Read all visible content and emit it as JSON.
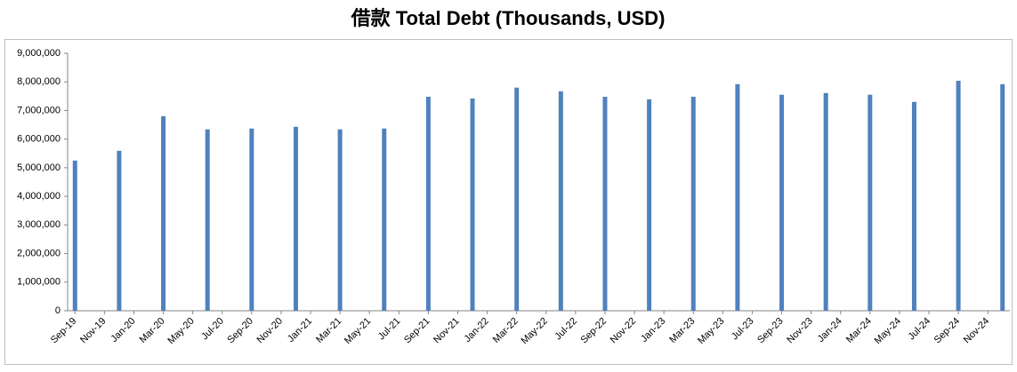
{
  "chart_data": {
    "type": "bar",
    "title": "借款 Total Debt (Thousands, USD)",
    "categories": [
      "Sep-19",
      null,
      "Nov-19",
      null,
      "Jan-20",
      null,
      "Mar-20",
      null,
      "May-20",
      null,
      "Jul-20",
      null,
      "Sep-20",
      null,
      "Nov-20",
      null,
      "Jan-21",
      null,
      "Mar-21",
      null,
      "May-21",
      null,
      "Jul-21",
      null,
      "Sep-21",
      null,
      "Nov-21",
      null,
      "Jan-22",
      null,
      "Mar-22",
      null,
      "May-22",
      null,
      "Jul-22",
      null,
      "Sep-22",
      null,
      "Nov-22",
      null,
      "Jan-23",
      null,
      "Mar-23",
      null,
      "May-23",
      null,
      "Jul-23",
      null,
      "Sep-23",
      null,
      "Nov-23",
      null,
      "Jan-24",
      null,
      "Mar-24",
      null,
      "May-24",
      null,
      "Jul-24",
      null,
      "Sep-24",
      null,
      "Nov-24",
      null
    ],
    "values": [
      5250000,
      null,
      null,
      5590000,
      null,
      null,
      6800000,
      null,
      null,
      6340000,
      null,
      null,
      6370000,
      null,
      null,
      6430000,
      null,
      null,
      6340000,
      null,
      null,
      6370000,
      null,
      null,
      7480000,
      null,
      null,
      7420000,
      null,
      null,
      7800000,
      null,
      null,
      7670000,
      null,
      null,
      7480000,
      null,
      null,
      7390000,
      null,
      null,
      7480000,
      null,
      null,
      7920000,
      null,
      null,
      7550000,
      null,
      null,
      7610000,
      null,
      null,
      7550000,
      null,
      null,
      7300000,
      null,
      null,
      8040000,
      null,
      null,
      7920000
    ],
    "color": "#4f81bd",
    "ylim": [
      0,
      9000000
    ],
    "yticks": [
      0,
      {
        "value": 1000000,
        "label": "1,000,000"
      },
      {
        "value": 2000000,
        "label": "2,000,000"
      },
      {
        "value": 3000000,
        "label": "3,000,000"
      },
      {
        "value": 4000000,
        "label": "4,000,000"
      },
      {
        "value": 5000000,
        "label": "5,000,000"
      },
      {
        "value": 6000000,
        "label": "6,000,000"
      },
      {
        "value": 7000000,
        "label": "7,000,000"
      },
      {
        "value": 8000000,
        "label": "8,000,000"
      },
      {
        "value": 9000000,
        "label": "9,000,000"
      }
    ],
    "grid": false
  }
}
